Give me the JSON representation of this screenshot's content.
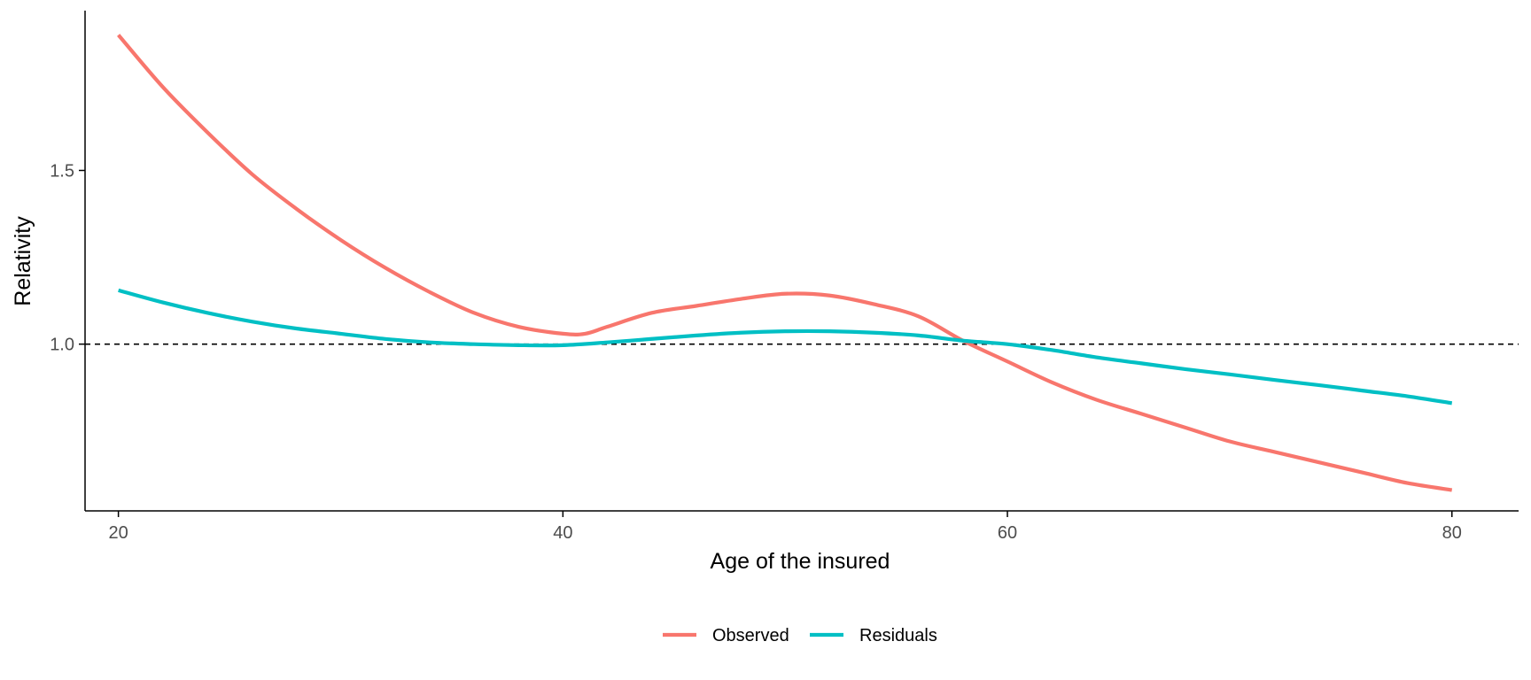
{
  "chart_data": {
    "type": "line",
    "xlabel": "Age of the insured",
    "ylabel": "Relativity",
    "xlim": [
      18.5,
      83
    ],
    "ylim": [
      0.52,
      1.96
    ],
    "x_ticks": [
      20,
      40,
      60,
      80
    ],
    "x_tick_labels": [
      "20",
      "40",
      "60",
      "80"
    ],
    "y_ticks": [
      1.0,
      1.5
    ],
    "y_tick_labels": [
      "1.0",
      "1.5"
    ],
    "reference_line": {
      "y": 1.0,
      "style": "dashed",
      "color": "#000000"
    },
    "grid": false,
    "legend_position": "bottom",
    "series": [
      {
        "name": "Observed",
        "color": "#F8766D",
        "x": [
          20,
          22,
          24,
          26,
          28,
          30,
          32,
          34,
          36,
          38,
          40,
          41,
          42,
          44,
          46,
          48,
          50,
          52,
          54,
          56,
          58,
          60,
          62,
          64,
          66,
          68,
          70,
          72,
          74,
          76,
          78,
          80
        ],
        "y": [
          1.89,
          1.74,
          1.61,
          1.49,
          1.39,
          1.3,
          1.22,
          1.15,
          1.09,
          1.05,
          1.03,
          1.03,
          1.05,
          1.09,
          1.11,
          1.13,
          1.145,
          1.14,
          1.115,
          1.08,
          1.01,
          0.95,
          0.89,
          0.84,
          0.8,
          0.76,
          0.72,
          0.69,
          0.66,
          0.63,
          0.6,
          0.58
        ]
      },
      {
        "name": "Residuals",
        "color": "#00BFC4",
        "x": [
          20,
          22,
          24,
          26,
          28,
          30,
          32,
          34,
          36,
          38,
          40,
          42,
          44,
          46,
          48,
          50,
          52,
          54,
          56,
          58,
          60,
          62,
          64,
          66,
          68,
          70,
          72,
          74,
          76,
          78,
          80
        ],
        "y": [
          1.155,
          1.12,
          1.09,
          1.065,
          1.045,
          1.03,
          1.015,
          1.005,
          1.0,
          0.997,
          0.997,
          1.005,
          1.015,
          1.025,
          1.033,
          1.037,
          1.037,
          1.033,
          1.025,
          1.01,
          1.0,
          0.983,
          0.962,
          0.945,
          0.928,
          0.913,
          0.897,
          0.882,
          0.866,
          0.85,
          0.83
        ]
      }
    ]
  }
}
